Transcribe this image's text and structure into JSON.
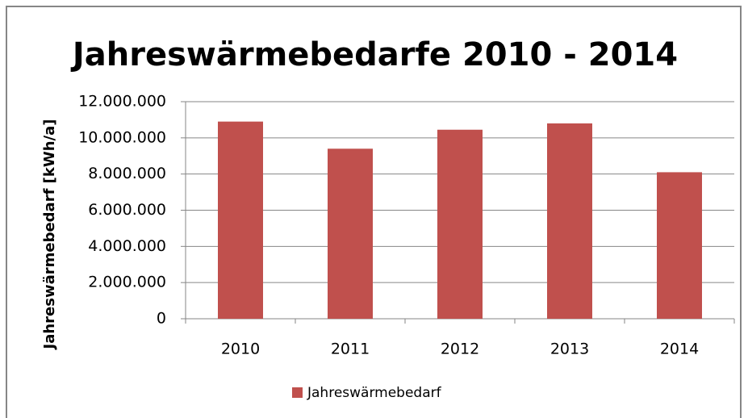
{
  "chart_data": {
    "type": "bar",
    "title": "Jahreswärmebedarfe 2010 - 2014",
    "y_label": "Jahreswärmebedarf [kWh/a]",
    "categories": [
      "2010",
      "2011",
      "2012",
      "2013",
      "2014"
    ],
    "series": [
      {
        "name": "Jahreswärmebedarf",
        "color": "#c0504d",
        "values": [
          10900000,
          9400000,
          10450000,
          10800000,
          8100000
        ]
      }
    ],
    "ylim": [
      0,
      12000000
    ],
    "yticks": [
      0,
      {
        "value": 2000000,
        "label": "2.000.000"
      },
      {
        "value": 4000000,
        "label": "4.000.000"
      },
      {
        "value": 6000000,
        "label": "6.000.000"
      },
      {
        "value": 8000000,
        "label": "8.000.000"
      },
      {
        "value": 10000000,
        "label": "10.000.000"
      },
      {
        "value": 12000000,
        "label": "12.000.000"
      }
    ],
    "grid": true,
    "legend": "bottom"
  }
}
